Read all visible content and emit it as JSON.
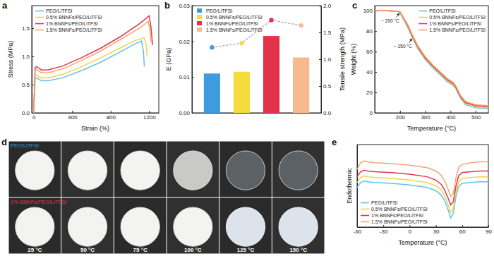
{
  "chart_data": [
    {
      "label": "a",
      "type": "line",
      "x_label": "Strain (%)",
      "y_label": "Stress (MPa)",
      "xlim": [
        -20,
        1300
      ],
      "xticks": [
        0,
        400,
        800,
        1200
      ],
      "ylim": [
        0,
        1.9
      ],
      "yticks": [
        {
          "value": 0,
          "label": "0.0"
        },
        {
          "value": 0.5,
          "label": "0.5"
        },
        {
          "value": 1,
          "label": "1.0"
        },
        {
          "value": 1.5,
          "label": "1.5"
        }
      ],
      "legend": "upper left",
      "series": [
        {
          "name": "PEO/LiTFSI",
          "color": "#5fc4e8",
          "x": [
            0,
            15,
            30,
            80,
            150,
            300,
            500,
            700,
            900,
            1050,
            1120,
            1140,
            1150
          ],
          "values": [
            0,
            0.6,
            0.62,
            0.57,
            0.57,
            0.62,
            0.75,
            0.9,
            1.08,
            1.22,
            1.27,
            1.1,
            0.82
          ]
        },
        {
          "name": "0.5% BNNFs/PEO/LiTFSI",
          "color": "#f0d24a",
          "x": [
            0,
            15,
            30,
            80,
            150,
            300,
            500,
            700,
            900,
            1050,
            1150,
            1170,
            1180
          ],
          "values": [
            0,
            0.65,
            0.67,
            0.62,
            0.62,
            0.68,
            0.82,
            0.98,
            1.15,
            1.28,
            1.33,
            1.2,
            1.0
          ]
        },
        {
          "name": "1% BNNFs/PEO/LiTFSI",
          "color": "#e2334b",
          "x": [
            0,
            15,
            30,
            80,
            150,
            300,
            500,
            700,
            900,
            1100,
            1200,
            1220,
            1235
          ],
          "values": [
            0,
            0.8,
            0.82,
            0.76,
            0.76,
            0.83,
            0.98,
            1.15,
            1.35,
            1.58,
            1.72,
            1.5,
            1.2
          ]
        },
        {
          "name": "1.5% BNNFs/PEO/LiTFSI",
          "color": "#f5a672",
          "x": [
            0,
            15,
            30,
            80,
            150,
            300,
            500,
            700,
            900,
            1100,
            1190,
            1210,
            1220
          ],
          "values": [
            0,
            0.75,
            0.77,
            0.71,
            0.71,
            0.78,
            0.93,
            1.1,
            1.3,
            1.5,
            1.62,
            1.45,
            1.25
          ]
        }
      ]
    },
    {
      "label": "b",
      "type": "bar",
      "y_label": "E (GPa)",
      "y2_label": "Tensile strength (MPa)",
      "categories": [
        "PEO/LiTFSI",
        "0.5% BNNFs/PEO/LiTFSI",
        "1% BNNFs/PEO/LiTFSI",
        "1.5% BNNFs/PEO/LiTFSI"
      ],
      "values": [
        0.011,
        0.0115,
        0.0215,
        0.0155
      ],
      "colors": [
        "#3d9be0",
        "#f4dc3c",
        "#e2334b",
        "#f8b98f"
      ],
      "ylim": [
        0,
        0.03
      ],
      "yticks": [
        {
          "value": 0,
          "label": "0.00"
        },
        {
          "value": 0.01,
          "label": "0.01"
        },
        {
          "value": 0.02,
          "label": "0.02"
        },
        {
          "value": 0.03,
          "label": "0.03"
        }
      ],
      "y2lim": [
        0,
        2
      ],
      "y2ticks": [
        {
          "value": 0,
          "label": "0.0"
        },
        {
          "value": 0.5,
          "label": "0.5"
        },
        {
          "value": 1,
          "label": "1.0"
        },
        {
          "value": 1.5,
          "label": "1.5"
        },
        {
          "value": 2,
          "label": "2.0"
        }
      ],
      "tick_labels": "y",
      "legend": "upper left",
      "series": [
        {
          "type": "line",
          "axis": "y2",
          "values": [
            1.22,
            1.3,
            1.73,
            1.63
          ],
          "colors": [
            "#3d9be0",
            "#f4dc3c",
            "#e2334b",
            "#f8b98f"
          ],
          "color": "#9e9e9e",
          "marker": "circle",
          "line_style": "dashed"
        }
      ]
    },
    {
      "label": "c",
      "type": "line",
      "x_label": "Temperature (°C)",
      "y_label": "Weight (%)",
      "xlim": [
        100,
        550
      ],
      "xticks": [
        200,
        300,
        400,
        500
      ],
      "ylim": [
        0,
        105
      ],
      "yticks": [
        0,
        20,
        40,
        60,
        80,
        100
      ],
      "legend": "upper right",
      "x": [
        100,
        150,
        190,
        200,
        210,
        230,
        250,
        270,
        300,
        330,
        360,
        390,
        410,
        420,
        440,
        460,
        500,
        550
      ],
      "series": [
        {
          "name": "PEO/LiTFSI",
          "color": "#5fc4e8",
          "values": [
            100,
            100,
            99.5,
            98,
            93,
            84,
            73,
            63,
            52,
            44,
            37,
            30,
            27,
            24,
            14,
            8,
            5,
            4
          ]
        },
        {
          "name": "0.5% BNNFs/PEO/LiTFSI",
          "color": "#f0d24a",
          "values": [
            100,
            100,
            99.5,
            98.5,
            94,
            85,
            74,
            64,
            53,
            45,
            38,
            31,
            28,
            25,
            15,
            9,
            6,
            5
          ]
        },
        {
          "name": "1% BNNFs/PEO/LiTFSI",
          "color": "#e2334b",
          "values": [
            100,
            100,
            99.6,
            99,
            95,
            86,
            75,
            65,
            54,
            46,
            39,
            32,
            29,
            26,
            16,
            10,
            7,
            6
          ]
        },
        {
          "name": "1.5% BNNFs/PEO/LiTFSI",
          "color": "#f5a672",
          "values": [
            100,
            100,
            99.6,
            99,
            95,
            87,
            76,
            66,
            55,
            47,
            40,
            33,
            30,
            27,
            17,
            11,
            8,
            7
          ]
        }
      ],
      "annotations": [
        {
          "text": "~ 200 °C",
          "x": 200,
          "y": 99
        },
        {
          "text": "~ 250 °C",
          "x": 250,
          "y": 74
        }
      ]
    },
    {
      "label": "d",
      "type": "photo_grid",
      "rows": [
        {
          "label": "PEO/LiTFSI",
          "color": "#2a9fd6"
        },
        {
          "label": "1% BNNFs/PEO/LiTFSI",
          "color": "#e0344b"
        }
      ],
      "columns": [
        "25 °C",
        "50 °C",
        "75 °C",
        "100 °C",
        "125 °C",
        "150 °C"
      ]
    },
    {
      "label": "e",
      "type": "line",
      "x_label": "Temperature (°C)",
      "y_label": "Endothermic",
      "xlim": [
        -60,
        90
      ],
      "xticks": [
        -60,
        -30,
        0,
        30,
        60,
        90
      ],
      "ylim": [
        -0.5,
        9.5
      ],
      "tick_labels": "x",
      "legend": "lower left",
      "x": [
        -60,
        -56,
        -52,
        -48,
        -40,
        -20,
        0,
        20,
        30,
        36,
        40,
        44,
        47,
        50,
        53,
        56,
        60,
        70,
        80,
        90
      ],
      "series": [
        {
          "name": "PEO/LiTFSI",
          "color": "#5fc4e8",
          "values": [
            4.3,
            4.9,
            5.1,
            5.0,
            4.9,
            4.8,
            4.6,
            4.3,
            3.9,
            3.4,
            2.7,
            1.6,
            0.6,
            1.2,
            3.2,
            4.4,
            4.8,
            4.9,
            5.0,
            5.0
          ]
        },
        {
          "name": "0.5% BNNFs/PEO/LiTFSI",
          "color": "#f0d24a",
          "values": [
            4.9,
            5.5,
            5.7,
            5.6,
            5.5,
            5.4,
            5.2,
            4.9,
            4.5,
            4.0,
            3.3,
            2.2,
            1.3,
            1.8,
            3.8,
            5.0,
            5.4,
            5.5,
            5.6,
            5.6
          ]
        },
        {
          "name": "1% BNNFs/PEO/LiTFSI",
          "color": "#e2334b",
          "values": [
            5.6,
            6.2,
            6.4,
            6.3,
            6.2,
            6.1,
            5.9,
            5.6,
            5.2,
            4.7,
            4.0,
            3.0,
            2.2,
            2.6,
            4.5,
            5.7,
            6.1,
            6.2,
            6.3,
            6.3
          ]
        },
        {
          "name": "1.5% BNNFs/PEO/LiTFSI",
          "color": "#f5a672",
          "values": [
            6.5,
            7.3,
            7.5,
            7.4,
            7.3,
            7.2,
            7.0,
            6.7,
            6.3,
            5.8,
            5.1,
            4.1,
            3.2,
            3.6,
            5.5,
            6.7,
            7.1,
            7.3,
            7.4,
            7.4
          ]
        }
      ]
    }
  ]
}
